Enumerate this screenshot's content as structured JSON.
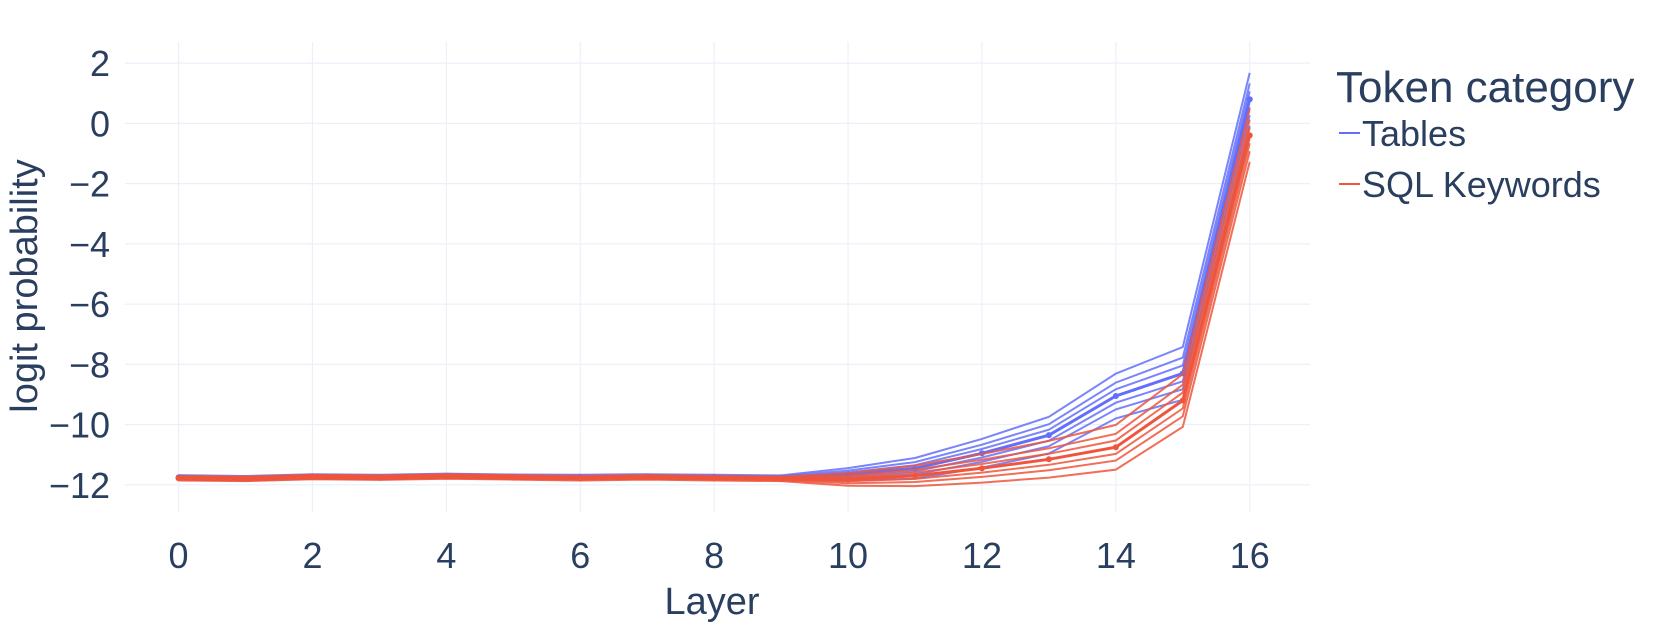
{
  "chart_data": {
    "type": "line",
    "title": "",
    "xlabel": "Layer",
    "ylabel": "logit probability",
    "xlim": [
      -0.8,
      16.9
    ],
    "ylim": [
      -12.9,
      2.7
    ],
    "x_ticks": [
      0,
      2,
      4,
      6,
      8,
      10,
      12,
      14,
      16
    ],
    "y_ticks": [
      2,
      0,
      -2,
      -4,
      -6,
      -8,
      -10,
      -12
    ],
    "y_tick_labels": [
      "2",
      "0",
      "−2",
      "−4",
      "−6",
      "−8",
      "−10",
      "−12"
    ],
    "grid": true,
    "legend": {
      "title": "Token category",
      "placement": "top-right",
      "entries": [
        "Tables",
        "SQL Keywords"
      ]
    },
    "x": [
      0,
      1,
      2,
      3,
      4,
      5,
      6,
      7,
      8,
      9,
      10,
      11,
      12,
      13,
      14,
      15,
      16
    ],
    "series": [
      {
        "name": "Tables",
        "color": "#636efa",
        "values": [
          -11.75,
          -11.78,
          -11.72,
          -11.74,
          -11.7,
          -11.73,
          -11.74,
          -11.72,
          -11.74,
          -11.76,
          -11.65,
          -11.45,
          -10.95,
          -10.35,
          -9.05,
          -8.3,
          0.8
        ]
      },
      {
        "name": "SQL Keywords",
        "color": "#ef553b",
        "values": [
          -11.78,
          -11.8,
          -11.74,
          -11.76,
          -11.72,
          -11.75,
          -11.78,
          -11.75,
          -11.78,
          -11.8,
          -11.82,
          -11.7,
          -11.45,
          -11.15,
          -10.75,
          -9.2,
          -0.4
        ]
      }
    ]
  }
}
